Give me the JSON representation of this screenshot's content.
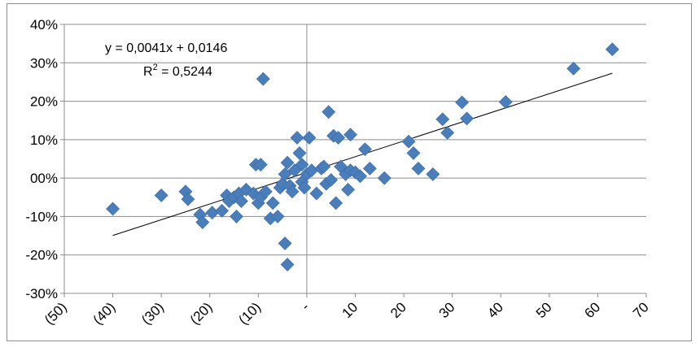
{
  "chart_data": {
    "type": "scatter",
    "title": "",
    "xlabel": "",
    "ylabel": "",
    "xlim": [
      -50,
      70
    ],
    "ylim": [
      -0.3,
      0.4
    ],
    "x_ticks": [
      -50,
      -40,
      -30,
      -20,
      -10,
      0,
      10,
      20,
      30,
      40,
      50,
      60,
      70
    ],
    "x_tick_labels": [
      "(50)",
      "(40)",
      "(30)",
      "(20)",
      "(10)",
      "-",
      "10",
      "20",
      "30",
      "40",
      "50",
      "60",
      "70"
    ],
    "y_ticks": [
      -0.3,
      -0.2,
      -0.1,
      0.0,
      0.1,
      0.2,
      0.3,
      0.4
    ],
    "y_tick_labels": [
      "-30%",
      "-20%",
      "-10%",
      "00%",
      "10%",
      "20%",
      "30%",
      "40%"
    ],
    "grid": "horizontal",
    "marker_color": "#4a7ebb",
    "trendline": {
      "slope": 0.0041,
      "intercept": 0.0146,
      "x_range": [
        -40,
        63
      ],
      "color": "#000000"
    },
    "equation_text": "y = 0,0041x + 0,0146",
    "r2_prefix": "R",
    "r2_sup": "2",
    "r2_suffix": " = 0,5244",
    "points": [
      [
        -40,
        -0.08
      ],
      [
        -30,
        -0.045
      ],
      [
        -25,
        -0.035
      ],
      [
        -24.5,
        -0.055
      ],
      [
        -22,
        -0.095
      ],
      [
        -21.5,
        -0.115
      ],
      [
        -19.5,
        -0.09
      ],
      [
        -17.5,
        -0.085
      ],
      [
        -16.5,
        -0.045
      ],
      [
        -16,
        -0.06
      ],
      [
        -15,
        -0.05
      ],
      [
        -14.5,
        -0.1
      ],
      [
        -14,
        -0.04
      ],
      [
        -13.5,
        -0.06
      ],
      [
        -12.5,
        -0.03
      ],
      [
        -11,
        -0.04
      ],
      [
        -10.5,
        0.035
      ],
      [
        -10,
        -0.065
      ],
      [
        -9.5,
        0.035
      ],
      [
        -9.5,
        -0.05
      ],
      [
        -9,
        0.258
      ],
      [
        -8.5,
        -0.035
      ],
      [
        -7.5,
        -0.105
      ],
      [
        -7,
        -0.065
      ],
      [
        -6,
        -0.1
      ],
      [
        -5.5,
        -0.025
      ],
      [
        -5,
        -0.015
      ],
      [
        -4.5,
        0.01
      ],
      [
        -4.5,
        -0.17
      ],
      [
        -4,
        -0.225
      ],
      [
        -4,
        0.04
      ],
      [
        -3.5,
        -0.02
      ],
      [
        -3,
        -0.035
      ],
      [
        -2.5,
        0.02
      ],
      [
        -2,
        0.105
      ],
      [
        -1.5,
        0.065
      ],
      [
        -1,
        0.035
      ],
      [
        -1,
        -0.01
      ],
      [
        -0.5,
        -0.025
      ],
      [
        0,
        0.01
      ],
      [
        0.5,
        0.105
      ],
      [
        1,
        0.02
      ],
      [
        2,
        -0.04
      ],
      [
        3,
        0.025
      ],
      [
        3.5,
        0.03
      ],
      [
        4,
        -0.015
      ],
      [
        4.5,
        0.172
      ],
      [
        5,
        -0.005
      ],
      [
        5.5,
        0.11
      ],
      [
        6,
        -0.065
      ],
      [
        6.5,
        0.105
      ],
      [
        7,
        0.03
      ],
      [
        8,
        0.01
      ],
      [
        8.5,
        -0.03
      ],
      [
        9,
        0.02
      ],
      [
        9,
        0.113
      ],
      [
        10,
        0.015
      ],
      [
        11,
        0.005
      ],
      [
        12,
        0.075
      ],
      [
        13,
        0.025
      ],
      [
        16,
        0.0
      ],
      [
        21,
        0.095
      ],
      [
        22,
        0.065
      ],
      [
        23,
        0.025
      ],
      [
        26,
        0.01
      ],
      [
        28,
        0.153
      ],
      [
        29,
        0.118
      ],
      [
        32,
        0.197
      ],
      [
        33,
        0.155
      ],
      [
        41,
        0.198
      ],
      [
        55,
        0.285
      ],
      [
        63,
        0.335
      ]
    ]
  }
}
